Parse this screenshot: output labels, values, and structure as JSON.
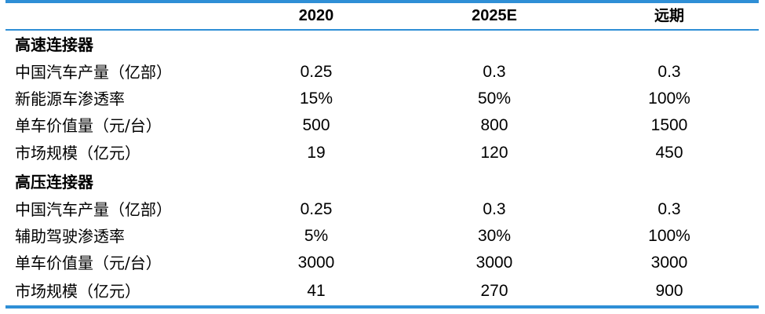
{
  "header": {
    "col_2020": "2020",
    "col_2025e": "2025E",
    "col_long_term": "远期"
  },
  "sections": [
    {
      "title": "高速连接器",
      "rows": [
        {
          "label": "中国汽车产量（亿部）",
          "v2020": "0.25",
          "v2025": "0.3",
          "vlong": "0.3"
        },
        {
          "label": "新能源车渗透率",
          "v2020": "15%",
          "v2025": "50%",
          "vlong": "100%"
        },
        {
          "label": "单车价值量（元/台）",
          "v2020": "500",
          "v2025": "800",
          "vlong": "1500"
        },
        {
          "label": "市场规模（亿元）",
          "v2020": "19",
          "v2025": "120",
          "vlong": "450"
        }
      ]
    },
    {
      "title": "高压连接器",
      "rows": [
        {
          "label": "中国汽车产量（亿部）",
          "v2020": "0.25",
          "v2025": "0.3",
          "vlong": "0.3"
        },
        {
          "label": "辅助驾驶渗透率",
          "v2020": "5%",
          "v2025": "30%",
          "vlong": "100%"
        },
        {
          "label": "单车价值量（元/台）",
          "v2020": "3000",
          "v2025": "3000",
          "vlong": "3000"
        },
        {
          "label": "市场规模（亿元）",
          "v2020": "41",
          "v2025": "270",
          "vlong": "900"
        }
      ]
    }
  ],
  "colors": {
    "rule": "#2f8fd6",
    "text": "#000000"
  }
}
